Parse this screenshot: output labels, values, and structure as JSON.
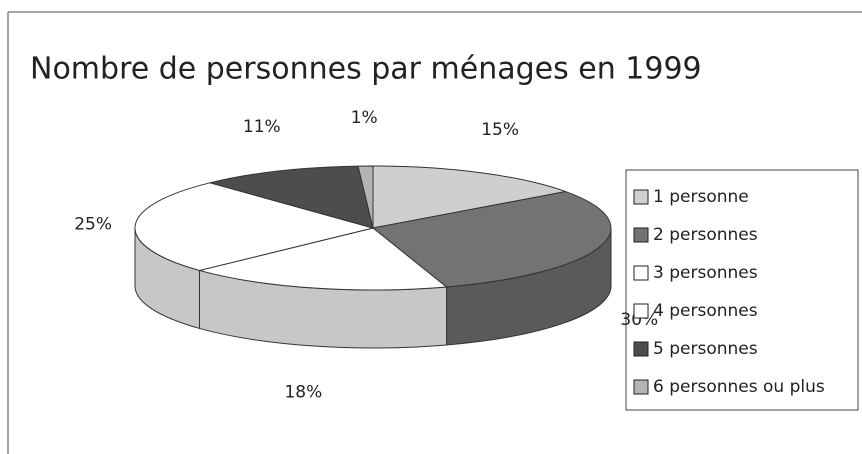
{
  "chart_data": {
    "type": "pie3d",
    "title": "Nombre de personnes par ménages en 1999",
    "categories": [
      "1 personne",
      "2 personnes",
      "3 personnes",
      "4 personnes",
      "5 personnes",
      "6 personnes ou plus"
    ],
    "values": [
      15,
      30,
      18,
      25,
      11,
      1
    ],
    "value_labels": [
      "15%",
      "30%",
      "18%",
      "25%",
      "11%",
      "1%"
    ],
    "colors": [
      "#cfcfcf",
      "#737373",
      "#ffffff",
      "#ffffff",
      "#4d4d4d",
      "#b4b4b4"
    ],
    "legend": "right"
  }
}
